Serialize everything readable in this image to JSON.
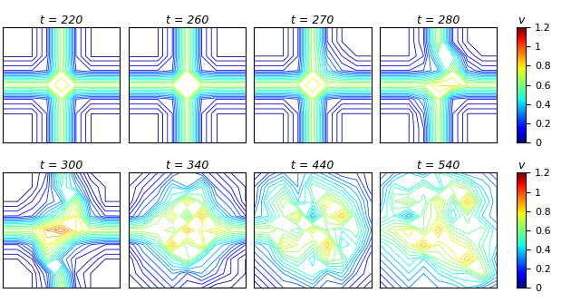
{
  "chart_data": [
    {
      "type": "contour",
      "title": "t = 220",
      "tick_labels": false,
      "z": [
        [
          0,
          0,
          0,
          0.15,
          0.7,
          0.15,
          0,
          0,
          0
        ],
        [
          0,
          0,
          0,
          0.15,
          0.7,
          0.15,
          0,
          0,
          0
        ],
        [
          0,
          0,
          0,
          0.15,
          0.7,
          0.15,
          0,
          0,
          0
        ],
        [
          0.15,
          0.15,
          0.15,
          0.2,
          0.7,
          0.2,
          0.15,
          0.15,
          0.15
        ],
        [
          0.7,
          0.7,
          0.7,
          0.7,
          0.8,
          0.7,
          0.7,
          0.7,
          0.7
        ],
        [
          0.15,
          0.15,
          0.15,
          0.2,
          0.7,
          0.2,
          0.15,
          0.15,
          0.15
        ],
        [
          0,
          0,
          0,
          0.15,
          0.7,
          0.15,
          0,
          0,
          0
        ],
        [
          0,
          0,
          0,
          0.15,
          0.7,
          0.15,
          0,
          0,
          0
        ],
        [
          0,
          0,
          0,
          0.15,
          0.7,
          0.15,
          0,
          0,
          0
        ]
      ]
    },
    {
      "type": "contour",
      "title": "t = 260",
      "tick_labels": false,
      "z": [
        [
          0,
          0,
          0,
          0.15,
          0.7,
          0.15,
          0,
          0,
          0
        ],
        [
          0,
          0,
          0,
          0.15,
          0.7,
          0.15,
          0,
          0,
          0
        ],
        [
          0,
          0,
          0,
          0.15,
          0.7,
          0.15,
          0,
          0,
          0
        ],
        [
          0.15,
          0.15,
          0.15,
          0.2,
          0.7,
          0.2,
          0.15,
          0.15,
          0.15
        ],
        [
          0.7,
          0.7,
          0.7,
          0.7,
          0.75,
          0.7,
          0.7,
          0.7,
          0.7
        ],
        [
          0.15,
          0.15,
          0.15,
          0.2,
          0.7,
          0.2,
          0.15,
          0.15,
          0.15
        ],
        [
          0,
          0,
          0,
          0.15,
          0.7,
          0.15,
          0,
          0,
          0
        ],
        [
          0,
          0,
          0,
          0.15,
          0.7,
          0.15,
          0,
          0,
          0
        ],
        [
          0,
          0,
          0,
          0.15,
          0.7,
          0.15,
          0,
          0,
          0
        ]
      ]
    },
    {
      "type": "contour",
      "title": "t = 270",
      "tick_labels": false,
      "z": [
        [
          0,
          0,
          0,
          0.15,
          0.7,
          0.15,
          0,
          0,
          0
        ],
        [
          0,
          0,
          0,
          0.15,
          0.7,
          0.15,
          0,
          0,
          0
        ],
        [
          0,
          0,
          0,
          0.15,
          0.7,
          0.25,
          0.1,
          0,
          0
        ],
        [
          0.15,
          0.15,
          0.15,
          0.2,
          0.7,
          0.35,
          0.2,
          0.15,
          0.15
        ],
        [
          0.7,
          0.7,
          0.7,
          0.7,
          0.8,
          0.7,
          0.7,
          0.7,
          0.7
        ],
        [
          0.15,
          0.15,
          0.15,
          0.2,
          0.7,
          0.2,
          0.15,
          0.15,
          0.15
        ],
        [
          0,
          0,
          0,
          0.15,
          0.7,
          0.15,
          0,
          0,
          0
        ],
        [
          0,
          0,
          0,
          0.15,
          0.7,
          0.15,
          0,
          0,
          0
        ],
        [
          0,
          0,
          0,
          0.15,
          0.7,
          0.15,
          0,
          0,
          0
        ]
      ]
    },
    {
      "type": "contour",
      "title": "t = 280",
      "tick_labels": false,
      "colorbar": {
        "label": "v",
        "range": [
          0,
          1.2
        ],
        "ticks": [
          0,
          0.2,
          0.4,
          0.6,
          0.8,
          1,
          1.2
        ]
      },
      "z": [
        [
          0,
          0,
          0,
          0.15,
          0.7,
          0.15,
          0,
          0,
          0
        ],
        [
          0,
          0,
          0,
          0.15,
          0.7,
          0.15,
          0,
          0,
          0
        ],
        [
          0,
          0,
          0,
          0.1,
          0.5,
          0.5,
          0.1,
          0,
          0
        ],
        [
          0.15,
          0.15,
          0.15,
          0.2,
          0.3,
          0.7,
          0.25,
          0.15,
          0.15
        ],
        [
          0.7,
          0.7,
          0.7,
          0.7,
          0.8,
          0.8,
          0.7,
          0.7,
          0.7
        ],
        [
          0.15,
          0.15,
          0.15,
          0.3,
          0.7,
          0.2,
          0.15,
          0.15,
          0.15
        ],
        [
          0,
          0,
          0,
          0.2,
          0.7,
          0.15,
          0,
          0,
          0
        ],
        [
          0,
          0,
          0,
          0.15,
          0.7,
          0.15,
          0,
          0,
          0
        ],
        [
          0,
          0,
          0,
          0.15,
          0.7,
          0.15,
          0,
          0,
          0
        ]
      ]
    },
    {
      "type": "contour",
      "title": "t = 300",
      "tick_labels": false,
      "z": [
        [
          0,
          0,
          0,
          0.1,
          0.6,
          0.2,
          0,
          0,
          0
        ],
        [
          0,
          0,
          0,
          0.15,
          0.5,
          0.35,
          0.1,
          0,
          0
        ],
        [
          0,
          0,
          0.1,
          0.2,
          0.3,
          0.7,
          0.2,
          0,
          0
        ],
        [
          0.15,
          0.15,
          0.2,
          0.4,
          0.6,
          0.8,
          0.3,
          0.15,
          0.15
        ],
        [
          0.7,
          0.7,
          0.7,
          0.9,
          1.0,
          0.8,
          0.7,
          0.7,
          0.7
        ],
        [
          0.15,
          0.15,
          0.3,
          0.8,
          0.6,
          0.3,
          0.2,
          0.15,
          0.15
        ],
        [
          0,
          0,
          0.1,
          0.6,
          0.3,
          0.15,
          0.1,
          0,
          0
        ],
        [
          0,
          0,
          0,
          0.2,
          0.6,
          0.1,
          0,
          0,
          0
        ],
        [
          0,
          0,
          0,
          0.15,
          0.7,
          0.15,
          0,
          0,
          0
        ]
      ]
    },
    {
      "type": "contour",
      "title": "t = 340",
      "tick_labels": false,
      "z": [
        [
          0,
          0,
          0.1,
          0.2,
          0.3,
          0.2,
          0.1,
          0,
          0
        ],
        [
          0,
          0.1,
          0.2,
          0.4,
          0.3,
          0.5,
          0.2,
          0.1,
          0
        ],
        [
          0,
          0.2,
          0.3,
          0.5,
          0.8,
          0.6,
          0.3,
          0.2,
          0
        ],
        [
          0.15,
          0.3,
          0.6,
          0.8,
          0.5,
          0.9,
          0.5,
          0.3,
          0.15
        ],
        [
          0.7,
          0.7,
          0.7,
          0.6,
          0.9,
          0.7,
          0.8,
          0.7,
          0.7
        ],
        [
          0.15,
          0.3,
          0.5,
          0.9,
          0.6,
          0.8,
          0.4,
          0.3,
          0.15
        ],
        [
          0,
          0.2,
          0.3,
          0.5,
          0.7,
          0.4,
          0.3,
          0.1,
          0
        ],
        [
          0,
          0.1,
          0.2,
          0.3,
          0.2,
          0.3,
          0.2,
          0.1,
          0
        ],
        [
          0,
          0,
          0.1,
          0.2,
          0.1,
          0.1,
          0,
          0,
          0
        ]
      ]
    },
    {
      "type": "contour",
      "title": "t = 440",
      "tick_labels": false,
      "z": [
        [
          0.1,
          0.2,
          0.3,
          0.3,
          0.4,
          0.3,
          0.2,
          0.2,
          0.1
        ],
        [
          0.2,
          0.4,
          0.5,
          0.3,
          0.6,
          0.5,
          0.4,
          0.3,
          0.1
        ],
        [
          0.2,
          0.5,
          0.7,
          0.4,
          0.5,
          0.8,
          0.6,
          0.4,
          0.2
        ],
        [
          0.3,
          0.4,
          0.6,
          0.8,
          0.3,
          0.7,
          0.9,
          0.5,
          0.2
        ],
        [
          0.7,
          0.7,
          0.6,
          0.5,
          0.8,
          0.6,
          0.5,
          0.6,
          0.3
        ],
        [
          0.3,
          0.4,
          0.8,
          0.7,
          0.6,
          0.9,
          0.4,
          0.5,
          0.2
        ],
        [
          0.2,
          0.3,
          0.5,
          0.6,
          0.4,
          0.7,
          0.6,
          0.3,
          0.1
        ],
        [
          0.1,
          0.2,
          0.3,
          0.4,
          0.5,
          0.3,
          0.4,
          0.2,
          0.1
        ],
        [
          0,
          0.1,
          0.2,
          0.2,
          0.3,
          0.2,
          0.2,
          0.1,
          0
        ]
      ]
    },
    {
      "type": "contour",
      "title": "t = 540",
      "tick_labels": false,
      "colorbar": {
        "label": "v",
        "range": [
          0,
          1.2
        ],
        "ticks": [
          0,
          0.2,
          0.4,
          0.6,
          0.8,
          1,
          1.2
        ]
      },
      "z": [
        [
          0.2,
          0.3,
          0.4,
          0.3,
          0.5,
          0.4,
          0.3,
          0.3,
          0.2
        ],
        [
          0.3,
          0.5,
          0.4,
          0.6,
          0.4,
          0.7,
          0.6,
          0.4,
          0.3
        ],
        [
          0.3,
          0.6,
          0.7,
          0.5,
          0.8,
          0.5,
          0.9,
          0.5,
          0.3
        ],
        [
          0.4,
          0.5,
          0.3,
          0.6,
          0.7,
          0.4,
          0.6,
          0.4,
          0.3
        ],
        [
          0.6,
          0.7,
          0.8,
          0.6,
          0.9,
          0.6,
          0.5,
          0.6,
          0.4
        ],
        [
          0.4,
          0.5,
          0.7,
          0.9,
          0.7,
          0.8,
          0.7,
          0.5,
          0.4
        ],
        [
          0.3,
          0.4,
          0.5,
          0.4,
          0.6,
          0.7,
          0.9,
          0.6,
          0.3
        ],
        [
          0.2,
          0.3,
          0.4,
          0.3,
          0.4,
          0.5,
          0.5,
          0.7,
          0.4
        ],
        [
          0.1,
          0.2,
          0.3,
          0.3,
          0.3,
          0.3,
          0.4,
          0.3,
          0.2
        ]
      ]
    }
  ]
}
